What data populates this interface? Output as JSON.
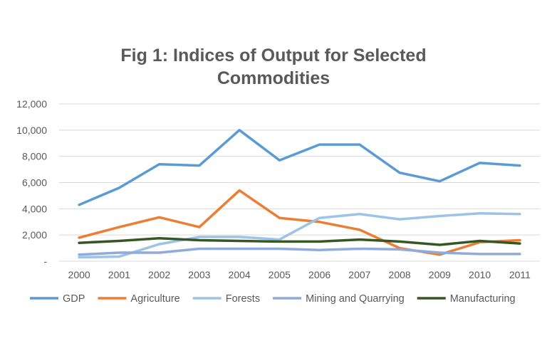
{
  "chart_data": {
    "type": "line",
    "title_line1": "Fig 1: Indices of Output for Selected",
    "title_line2": "Commodities",
    "xlabel": "",
    "ylabel": "",
    "categories": [
      "2000",
      "2001",
      "2002",
      "2003",
      "2004",
      "2005",
      "2006",
      "2007",
      "2008",
      "2009",
      "2010",
      "2011"
    ],
    "ylim": [
      0,
      12000
    ],
    "y_ticks": [
      0,
      2000,
      4000,
      6000,
      8000,
      10000,
      12000
    ],
    "y_tick_labels": [
      "-",
      "2,000",
      "4,000",
      "6,000",
      "8,000",
      "10,000",
      "12,000"
    ],
    "grid": true,
    "legend_position": "bottom",
    "series": [
      {
        "name": "GDP",
        "color": "#5b9bd5",
        "values": [
          4300,
          5600,
          7400,
          7300,
          10000,
          7700,
          8900,
          8900,
          6750,
          6100,
          7500,
          7300
        ]
      },
      {
        "name": "Agriculture",
        "color": "#ed7d31",
        "values": [
          1800,
          2600,
          3350,
          2600,
          5400,
          3300,
          3000,
          2400,
          1000,
          500,
          1450,
          1600
        ]
      },
      {
        "name": "Forests",
        "color": "#9dc3e6",
        "values": [
          300,
          350,
          1300,
          1850,
          1850,
          1650,
          3300,
          3600,
          3200,
          3450,
          3650,
          3600
        ]
      },
      {
        "name": "Mining and Quarrying",
        "color": "#8faadc",
        "values": [
          500,
          650,
          650,
          950,
          950,
          950,
          850,
          950,
          900,
          650,
          550,
          550
        ]
      },
      {
        "name": "Manufacturing",
        "color": "#375623",
        "values": [
          1400,
          1550,
          1750,
          1600,
          1550,
          1500,
          1500,
          1650,
          1500,
          1250,
          1550,
          1350
        ]
      }
    ]
  }
}
